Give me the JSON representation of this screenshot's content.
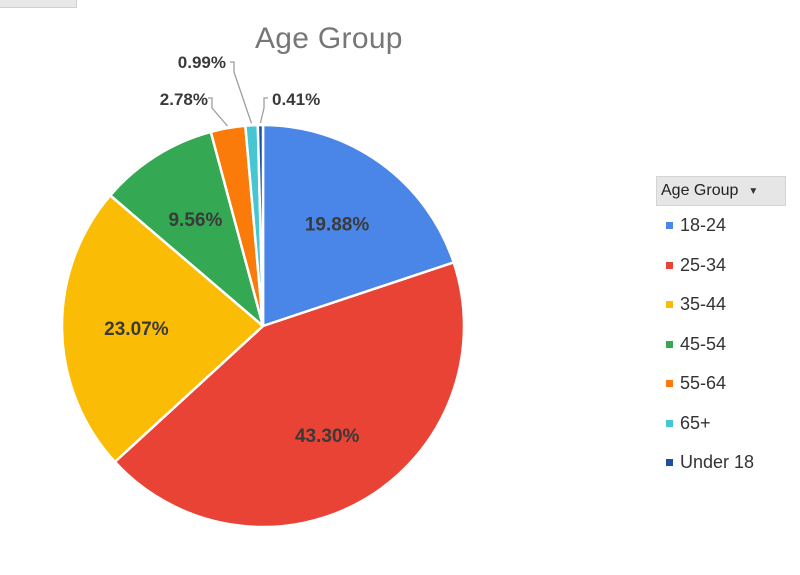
{
  "chart_data": {
    "type": "pie",
    "title": "Age Group",
    "categories": [
      "18-24",
      "25-34",
      "35-44",
      "45-54",
      "55-64",
      "65+",
      "Under 18"
    ],
    "values": [
      19.88,
      43.3,
      23.07,
      9.56,
      2.78,
      0.99,
      0.41
    ],
    "data_labels": [
      "19.88%",
      "43.30%",
      "23.07%",
      "9.56%",
      "2.78%",
      "0.99%",
      "0.41%"
    ],
    "colors": [
      "#4a86e8",
      "#e94335",
      "#fbbc05",
      "#34a853",
      "#fa7a0a",
      "#45c6d1",
      "#1c4ea2"
    ],
    "legend_position": "right",
    "legend_title": "Age Group",
    "label_ordering": "clockwise-from-top"
  }
}
